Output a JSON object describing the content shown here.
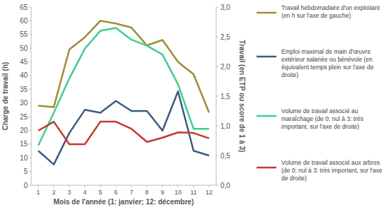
{
  "chart_data": {
    "type": "line",
    "x_label": "Mois de l'année (1: janvier; 12: décembre)",
    "y_label": "Charge de travail (h)",
    "y2_label": "Travail (en ETP ou score de 1 à 3)",
    "categories": [
      "1",
      "2",
      "3",
      "4",
      "5",
      "6",
      "7",
      "8",
      "9",
      "10",
      "11",
      "12"
    ],
    "ylim": [
      0,
      65
    ],
    "yticks": [
      0,
      5,
      10,
      15,
      20,
      25,
      30,
      35,
      40,
      45,
      50,
      55,
      60,
      65
    ],
    "y2lim": [
      0,
      3
    ],
    "y2ticks": [
      {
        "value": 0,
        "label": "0,0"
      },
      {
        "value": 0.5,
        "label": "0,5"
      },
      {
        "value": 1,
        "label": "1,0"
      },
      {
        "value": 1.5,
        "label": "1,5"
      },
      {
        "value": 2,
        "label": "2,0"
      },
      {
        "value": 2.5,
        "label": "2,5"
      },
      {
        "value": 3,
        "label": "3,0"
      }
    ],
    "grid": false,
    "legend": "right",
    "series": [
      {
        "name": "Travail hebdomadaire d'un exploitant (en h sur l'axe de gauche)",
        "color": "#a18c35",
        "values": [
          29,
          28.5,
          49.5,
          54,
          60,
          59,
          57.5,
          51,
          53,
          45,
          40.5,
          26.5
        ]
      },
      {
        "name": "Emploi maximal de main d'œuvre extérieur salariée ou bénévole (en équivalent temps plein sur l'axe de droite)",
        "color": "#3f5a80",
        "axis": "y2",
        "values": [
          0.58,
          0.35,
          0.88,
          1.27,
          1.22,
          1.42,
          1.25,
          1.25,
          0.92,
          1.58,
          0.58,
          0.5
        ]
      },
      {
        "name": "Volume de travail associé au maraîchage (de 0: nul à 3: très important, sur l'axe de droite)",
        "color": "#3ecf8e",
        "axis": "y2",
        "values": [
          0.67,
          1.22,
          1.8,
          2.3,
          2.6,
          2.65,
          2.45,
          2.35,
          2.2,
          1.7,
          0.95,
          0.95
        ]
      },
      {
        "name": "Volume de travail associé aux arbres (de 0: nul à 3: très important, sur l'axe de droite)",
        "color": "#c43a2f",
        "axis": "y2",
        "values": [
          0.92,
          1.07,
          0.69,
          0.69,
          1.07,
          1.07,
          0.95,
          0.73,
          0.8,
          0.89,
          0.88,
          0.79
        ]
      }
    ]
  }
}
